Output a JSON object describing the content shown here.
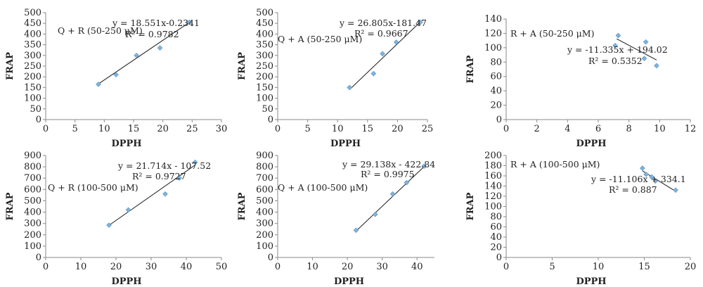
{
  "chart_data": [
    {
      "type": "scatter",
      "title": "Q + R (50-250 μM)",
      "xlabel": "DPPH",
      "ylabel": "FRAP",
      "xlim": [
        0,
        30
      ],
      "xticks": [
        "0",
        "5",
        "10",
        "15",
        "20",
        "25",
        "30"
      ],
      "ylim": [
        0,
        500
      ],
      "yticks": [
        "0",
        "50",
        "100",
        "150",
        "200",
        "250",
        "300",
        "350",
        "400",
        "450",
        "500"
      ],
      "points": [
        [
          9.0,
          165
        ],
        [
          12.0,
          210
        ],
        [
          15.5,
          300
        ],
        [
          19.5,
          335
        ],
        [
          24.5,
          455
        ]
      ],
      "trendline": {
        "slope": 18.551,
        "intercept": -0.2341,
        "x_range": [
          9.0,
          24.5
        ]
      },
      "equation": "y = 18.551x-0.2341",
      "r2": "R² = 0.9782"
    },
    {
      "type": "scatter",
      "title": "Q + A (50-250 μM)",
      "xlabel": "DPPH",
      "ylabel": "FRAP",
      "xlim": [
        0,
        25
      ],
      "xticks": [
        "0",
        "5",
        "10",
        "15",
        "20",
        "25"
      ],
      "ylim": [
        0,
        500
      ],
      "yticks": [
        "0",
        "50",
        "100",
        "150",
        "200",
        "250",
        "300",
        "350",
        "400",
        "450",
        "500"
      ],
      "points": [
        [
          12.0,
          150
        ],
        [
          16.0,
          215
        ],
        [
          17.5,
          308
        ],
        [
          19.8,
          362
        ],
        [
          23.8,
          455
        ]
      ],
      "trendline": {
        "slope": 26.805,
        "intercept": -181.47,
        "x_range": [
          12.0,
          23.8
        ]
      },
      "equation": "y = 26.805x-181.47",
      "r2": "R² = 0.9667"
    },
    {
      "type": "scatter",
      "title": "R + A (50-250 μM)",
      "xlabel": "DPPH",
      "ylabel": "FRAP",
      "xlim": [
        0,
        12
      ],
      "xticks": [
        "0",
        "2",
        "4",
        "6",
        "8",
        "10",
        "12"
      ],
      "ylim": [
        0,
        140
      ],
      "yticks": [
        "0",
        "20",
        "40",
        "60",
        "80",
        "100",
        "120",
        "140"
      ],
      "points": [
        [
          7.1,
          103
        ],
        [
          7.3,
          117
        ],
        [
          9.0,
          85
        ],
        [
          9.1,
          108
        ],
        [
          9.8,
          75
        ]
      ],
      "trendline": {
        "slope": -11.335,
        "intercept": 194.02,
        "x_range": [
          7.2,
          9.8
        ]
      },
      "equation": "y = -11.335x + 194.02",
      "r2": "R² = 0.5352"
    },
    {
      "type": "scatter",
      "title": "Q + R (100-500 μM)",
      "xlabel": "DPPH",
      "ylabel": "FRAP",
      "xlim": [
        0,
        50
      ],
      "xticks": [
        "0",
        "10",
        "20",
        "30",
        "40",
        "50"
      ],
      "ylim": [
        0,
        900
      ],
      "yticks": [
        "0",
        "100",
        "200",
        "300",
        "400",
        "500",
        "600",
        "700",
        "800",
        "900"
      ],
      "points": [
        [
          18.0,
          285
        ],
        [
          23.5,
          420
        ],
        [
          34.0,
          560
        ],
        [
          38.0,
          700
        ],
        [
          42.5,
          840
        ]
      ],
      "trendline": {
        "slope": 21.714,
        "intercept": -107.52,
        "x_range": [
          18.0,
          42.5
        ]
      },
      "equation": "y = 21.714x - 107.52",
      "r2": "R² = 0.9727"
    },
    {
      "type": "scatter",
      "title": "Q + A (100-500 μM)",
      "xlabel": "DPPH",
      "ylabel": "FRAP",
      "xlim": [
        0,
        45
      ],
      "xticks": [
        "0",
        "10",
        "20",
        "30",
        "40"
      ],
      "ylim": [
        0,
        900
      ],
      "yticks": [
        "0",
        "100",
        "200",
        "300",
        "400",
        "500",
        "600",
        "700",
        "800",
        "900"
      ],
      "points": [
        [
          22.5,
          240
        ],
        [
          28.0,
          380
        ],
        [
          33.0,
          560
        ],
        [
          37.0,
          660
        ],
        [
          42.0,
          805
        ]
      ],
      "trendline": {
        "slope": 29.138,
        "intercept": -422.84,
        "x_range": [
          22.5,
          42.0
        ]
      },
      "equation": "y = 29.138x - 422.84",
      "r2": "R² = 0.9975"
    },
    {
      "type": "scatter",
      "title": "R + A (100-500 μM)",
      "xlabel": "DPPH",
      "ylabel": "FRAP",
      "xlim": [
        0,
        20
      ],
      "xticks": [
        "0",
        "5",
        "10",
        "15",
        "20"
      ],
      "ylim": [
        0,
        200
      ],
      "yticks": [
        "0",
        "20",
        "40",
        "60",
        "80",
        "100",
        "120",
        "140",
        "160",
        "180",
        "200"
      ],
      "points": [
        [
          14.8,
          175
        ],
        [
          15.2,
          163
        ],
        [
          15.8,
          158
        ],
        [
          16.2,
          150
        ],
        [
          18.4,
          132
        ]
      ],
      "trendline": {
        "slope": -11.106,
        "intercept": 334.1,
        "x_range": [
          14.8,
          18.4
        ]
      },
      "equation": "y = -11.106x + 334.1",
      "r2": "R² = 0.887"
    }
  ]
}
